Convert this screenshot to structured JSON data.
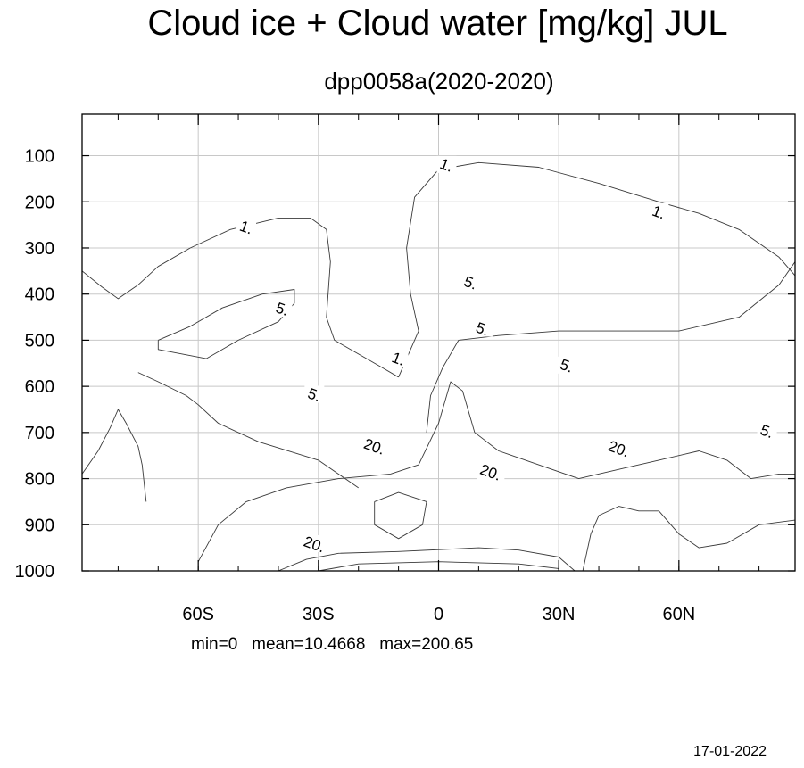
{
  "chart_data": {
    "type": "contour",
    "title": "Cloud ice + Cloud water [mg/kg] JUL",
    "subtitle": "dpp0058a(2020-2020)",
    "x_ticks": [
      {
        "value": -60,
        "label": "60S"
      },
      {
        "value": -30,
        "label": "30S"
      },
      {
        "value": 0,
        "label": "0"
      },
      {
        "value": 30,
        "label": "30N"
      },
      {
        "value": 60,
        "label": "60N"
      }
    ],
    "y_ticks": [
      100,
      200,
      300,
      400,
      500,
      600,
      700,
      800,
      900,
      1000
    ],
    "xlim": [
      -89,
      89
    ],
    "ylim": [
      1000,
      10
    ],
    "grid": true,
    "contour_levels": [
      1,
      5,
      20
    ],
    "contour_labels": [
      {
        "text": "1.",
        "x": 2,
        "y": 120
      },
      {
        "text": "1.",
        "x": -48,
        "y": 255
      },
      {
        "text": "1.",
        "x": 55,
        "y": 222
      },
      {
        "text": "1.",
        "x": -10,
        "y": 540
      },
      {
        "text": "5.",
        "x": 8,
        "y": 375
      },
      {
        "text": "5.",
        "x": -39,
        "y": 432
      },
      {
        "text": "5.",
        "x": 11,
        "y": 475
      },
      {
        "text": "5.",
        "x": 32,
        "y": 555
      },
      {
        "text": "5.",
        "x": -31,
        "y": 618
      },
      {
        "text": "5.",
        "x": 82,
        "y": 697
      },
      {
        "text": "20.",
        "x": -16,
        "y": 730
      },
      {
        "text": "20.",
        "x": 13,
        "y": 786
      },
      {
        "text": "20.",
        "x": 45,
        "y": 735
      },
      {
        "text": "20.",
        "x": -31,
        "y": 942
      }
    ],
    "contours": [
      {
        "level": 1,
        "points": [
          [
            -10,
            580
          ],
          [
            -8,
            540
          ],
          [
            -5,
            480
          ],
          [
            -7,
            400
          ],
          [
            -8,
            300
          ],
          [
            -6,
            190
          ],
          [
            0,
            130
          ],
          [
            10,
            115
          ],
          [
            25,
            125
          ],
          [
            40,
            160
          ],
          [
            55,
            200
          ],
          [
            65,
            225
          ],
          [
            75,
            260
          ],
          [
            85,
            320
          ],
          [
            89,
            360
          ]
        ]
      },
      {
        "level": 1,
        "points": [
          [
            -89,
            350
          ],
          [
            -84,
            385
          ],
          [
            -80,
            410
          ],
          [
            -75,
            380
          ],
          [
            -70,
            340
          ],
          [
            -62,
            300
          ],
          [
            -52,
            260
          ],
          [
            -40,
            235
          ],
          [
            -32,
            235
          ],
          [
            -28,
            260
          ],
          [
            -27,
            330
          ],
          [
            -28,
            450
          ],
          [
            -26,
            500
          ],
          [
            -20,
            530
          ],
          [
            -14,
            560
          ],
          [
            -10,
            580
          ]
        ]
      },
      {
        "level": 5,
        "points": [
          [
            -3,
            700
          ],
          [
            -2,
            620
          ],
          [
            1,
            560
          ],
          [
            5,
            500
          ],
          [
            15,
            490
          ],
          [
            30,
            480
          ],
          [
            45,
            480
          ],
          [
            60,
            480
          ],
          [
            75,
            450
          ],
          [
            85,
            380
          ],
          [
            89,
            330
          ]
        ]
      },
      {
        "level": 5,
        "points": [
          [
            -20,
            820
          ],
          [
            -30,
            760
          ],
          [
            -45,
            720
          ],
          [
            -55,
            680
          ],
          [
            -60,
            640
          ],
          [
            -63,
            620
          ],
          [
            -70,
            590
          ],
          [
            -75,
            570
          ]
        ]
      },
      {
        "level": 5,
        "points": [
          [
            -70,
            500
          ],
          [
            -62,
            470
          ],
          [
            -54,
            430
          ],
          [
            -44,
            400
          ],
          [
            -36,
            390
          ],
          [
            -36,
            420
          ],
          [
            -40,
            460
          ],
          [
            -50,
            500
          ],
          [
            -58,
            540
          ],
          [
            -70,
            520
          ],
          [
            -70,
            500
          ]
        ]
      },
      {
        "level": 20,
        "points": [
          [
            -89,
            790
          ],
          [
            -85,
            740
          ],
          [
            -82,
            690
          ],
          [
            -80,
            650
          ],
          [
            -78,
            680
          ],
          [
            -75,
            730
          ],
          [
            -74,
            770
          ],
          [
            -73,
            850
          ]
        ]
      },
      {
        "level": 20,
        "points": [
          [
            -60,
            980
          ],
          [
            -55,
            900
          ],
          [
            -48,
            850
          ],
          [
            -38,
            820
          ],
          [
            -25,
            800
          ],
          [
            -12,
            790
          ],
          [
            -5,
            770
          ],
          [
            0,
            680
          ],
          [
            3,
            590
          ],
          [
            6,
            610
          ],
          [
            9,
            700
          ],
          [
            15,
            740
          ],
          [
            25,
            770
          ],
          [
            35,
            800
          ],
          [
            45,
            780
          ],
          [
            55,
            760
          ],
          [
            65,
            740
          ],
          [
            72,
            760
          ],
          [
            78,
            800
          ],
          [
            85,
            790
          ],
          [
            89,
            790
          ]
        ]
      },
      {
        "level": 20,
        "points": [
          [
            -16,
            850
          ],
          [
            -10,
            830
          ],
          [
            -3,
            850
          ],
          [
            -4,
            900
          ],
          [
            -10,
            930
          ],
          [
            -16,
            900
          ],
          [
            -16,
            850
          ]
        ]
      },
      {
        "level": 20,
        "points": [
          [
            -40,
            1000
          ],
          [
            -33,
            975
          ],
          [
            -25,
            962
          ],
          [
            -10,
            958
          ],
          [
            10,
            950
          ],
          [
            20,
            955
          ],
          [
            30,
            970
          ],
          [
            34,
            1000
          ]
        ]
      },
      {
        "level": 20,
        "points": [
          [
            -30,
            1000
          ],
          [
            -20,
            985
          ],
          [
            0,
            980
          ],
          [
            20,
            985
          ],
          [
            30,
            995
          ]
        ]
      },
      {
        "level": 20,
        "points": [
          [
            36,
            1000
          ],
          [
            38,
            920
          ],
          [
            40,
            880
          ],
          [
            45,
            860
          ],
          [
            50,
            870
          ],
          [
            55,
            870
          ],
          [
            60,
            920
          ],
          [
            65,
            950
          ],
          [
            72,
            940
          ],
          [
            80,
            900
          ],
          [
            89,
            890
          ]
        ]
      }
    ],
    "stats": {
      "min": "0",
      "mean": "10.4668",
      "max": "200.65"
    }
  },
  "stats_text": "min=0   mean=10.4668   max=200.65",
  "footer_date": "17-01-2022"
}
